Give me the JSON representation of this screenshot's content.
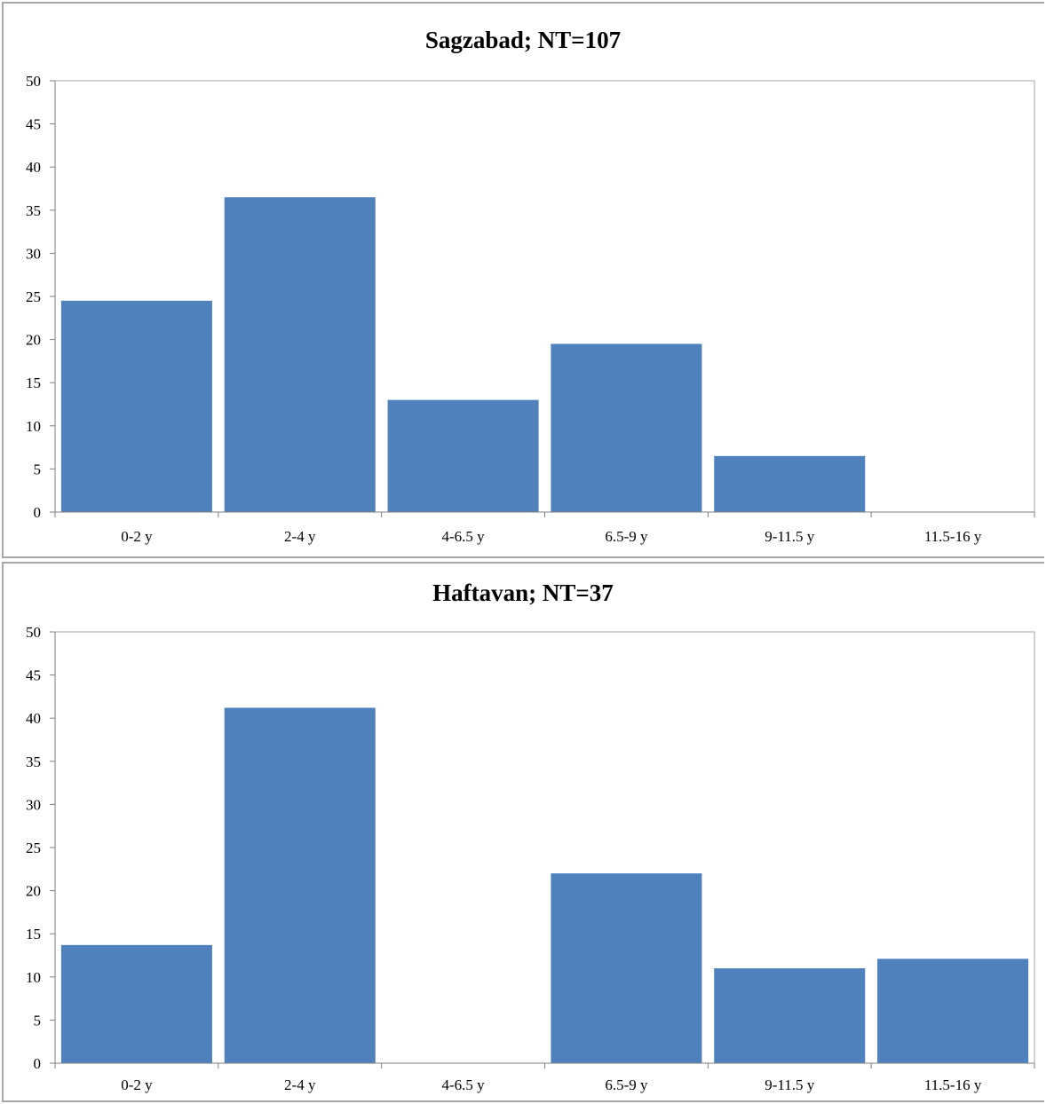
{
  "colors": {
    "bar": "#4f81bd",
    "axis": "#7f7f7f",
    "plot_border": "#a6a6a6"
  },
  "chart_data": [
    {
      "type": "bar",
      "title": "Sagzabad; NT=107",
      "categories": [
        "0-2 y",
        "2-4 y",
        "4-6.5 y",
        "6.5-9 y",
        "9-11.5 y",
        "11.5-16 y"
      ],
      "values": [
        24.5,
        36.5,
        13,
        19.5,
        6.5,
        0
      ],
      "ylim": [
        0,
        50
      ],
      "yticks": [
        0,
        5,
        10,
        15,
        20,
        25,
        30,
        35,
        40,
        45,
        50
      ],
      "xlabel": "",
      "ylabel": "",
      "grid": false,
      "legend": "none"
    },
    {
      "type": "bar",
      "title": "Haftavan; NT=37",
      "categories": [
        "0-2 y",
        "2-4 y",
        "4-6.5 y",
        "6.5-9 y",
        "9-11.5 y",
        "11.5-16 y"
      ],
      "values": [
        13.7,
        41.2,
        0,
        22,
        11,
        12.1
      ],
      "ylim": [
        0,
        50
      ],
      "yticks": [
        0,
        5,
        10,
        15,
        20,
        25,
        30,
        35,
        40,
        45,
        50
      ],
      "xlabel": "",
      "ylabel": "",
      "grid": false,
      "legend": "none"
    }
  ]
}
